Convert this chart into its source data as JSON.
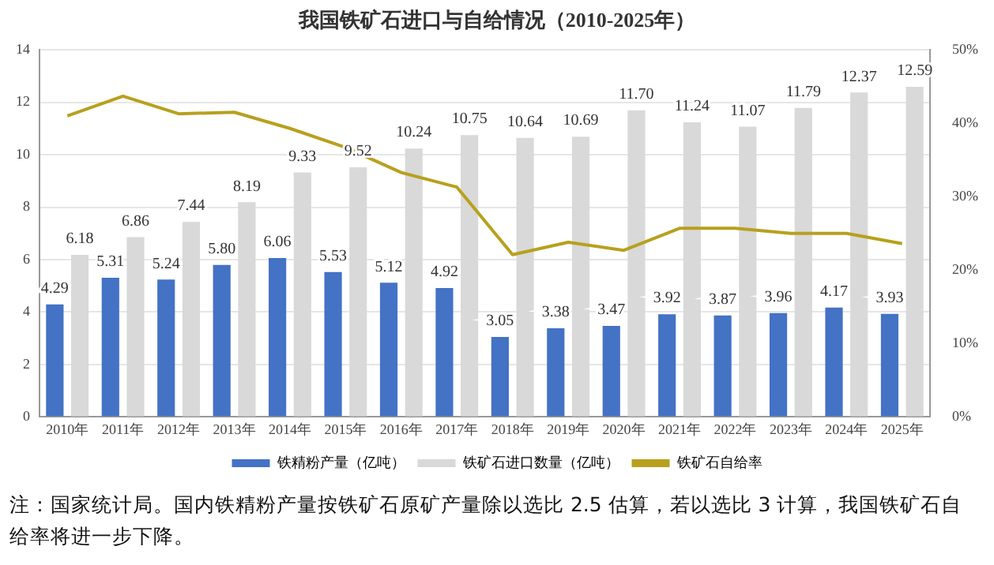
{
  "chart_data": {
    "type": "bar",
    "title": "我国铁矿石进口与自给情况（2010-2025年）",
    "categories": [
      "2010年",
      "2011年",
      "2012年",
      "2013年",
      "2014年",
      "2015年",
      "2016年",
      "2017年",
      "2018年",
      "2019年",
      "2020年",
      "2021年",
      "2022年",
      "2023年",
      "2024年",
      "2025年"
    ],
    "series": [
      {
        "name": "铁精粉产量（亿吨）",
        "color": "#4472c4",
        "values": [
          4.29,
          5.31,
          5.24,
          5.8,
          6.06,
          5.53,
          5.12,
          4.92,
          3.05,
          3.38,
          3.47,
          3.92,
          3.87,
          3.96,
          4.17,
          3.93
        ],
        "value_labels": [
          "4.29",
          "5.31",
          "5.24",
          "5.80",
          "6.06",
          "5.53",
          "5.12",
          "4.92",
          "3.05",
          "3.38",
          "3.47",
          "3.92",
          "3.87",
          "3.96",
          "4.17",
          "3.93"
        ]
      },
      {
        "name": "铁矿石进口数量（亿吨）",
        "color": "#d9d9d9",
        "values": [
          6.18,
          6.86,
          7.44,
          8.19,
          9.33,
          9.52,
          10.24,
          10.75,
          10.64,
          10.69,
          11.7,
          11.24,
          11.07,
          11.79,
          12.37,
          12.59
        ],
        "value_labels": [
          "6.18",
          "6.86",
          "7.44",
          "8.19",
          "9.33",
          "9.52",
          "10.24",
          "10.75",
          "10.64",
          "10.69",
          "11.70",
          "11.24",
          "11.07",
          "11.79",
          "12.37",
          "12.59"
        ]
      },
      {
        "name": "铁矿石自给率",
        "type": "line",
        "axis": "y2",
        "color": "#b8a01e",
        "values": [
          41,
          43.7,
          41.3,
          41.5,
          39.3,
          36.7,
          33.3,
          31.3,
          22.1,
          23.8,
          22.7,
          25.7,
          25.7,
          25.0,
          25.0,
          23.6
        ]
      }
    ],
    "ylim": [
      0,
      14
    ],
    "yticks": [
      0,
      2,
      4,
      6,
      8,
      10,
      12,
      14
    ],
    "y2lim": [
      0,
      50
    ],
    "y2ticks": [
      {
        "value": 0,
        "label": "0%"
      },
      {
        "value": 10,
        "label": "10%"
      },
      {
        "value": 20,
        "label": "20%"
      },
      {
        "value": 30,
        "label": "30%"
      },
      {
        "value": 40,
        "label": "40%"
      },
      {
        "value": 50,
        "label": "50%"
      }
    ],
    "grid": "y",
    "legend": "bottom",
    "marker": "none",
    "line_style": "solid",
    "annotations": [
      "注：国家统计局。国内铁精粉产量按铁矿石原矿产量除以选比 2.5 估算，若以选比 3 计算，我国铁矿石自给率将进一步下降。"
    ]
  }
}
